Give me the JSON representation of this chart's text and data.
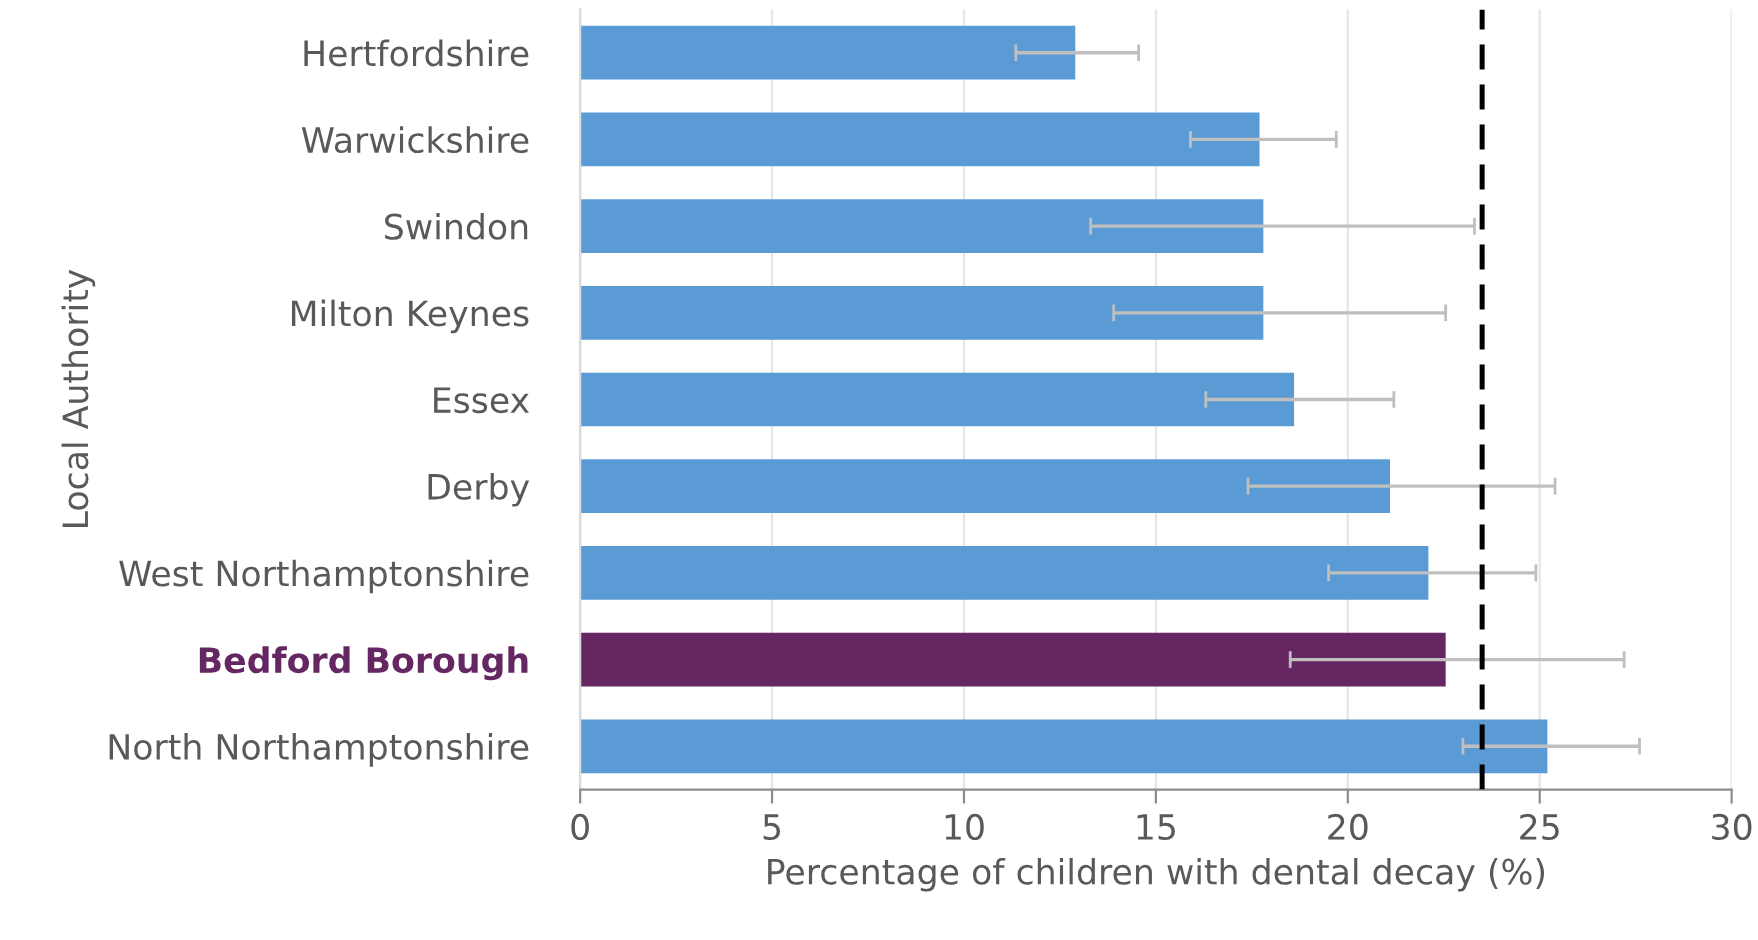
{
  "chart_data": {
    "type": "bar",
    "orientation": "horizontal",
    "xlabel": "Percentage of children with dental decay (%)",
    "ylabel": "Local Authority",
    "categories": [
      "Hertfordshire",
      "Warwickshire",
      "Swindon",
      "Milton Keynes",
      "Essex",
      "Derby",
      "West Northamptonshire",
      "Bedford Borough",
      "North Northamptonshire"
    ],
    "values": [
      12.9,
      17.7,
      17.8,
      17.8,
      18.6,
      21.1,
      22.1,
      22.55,
      25.2
    ],
    "colors": [
      "#5b9bd5",
      "#5b9bd5",
      "#5b9bd5",
      "#5b9bd5",
      "#5b9bd5",
      "#5b9bd5",
      "#5b9bd5",
      "#652762",
      "#5b9bd5"
    ],
    "errors": [
      [
        11.35,
        14.55
      ],
      [
        15.9,
        19.7
      ],
      [
        13.3,
        23.3
      ],
      [
        13.9,
        22.55
      ],
      [
        16.3,
        21.2
      ],
      [
        17.4,
        25.4
      ],
      [
        19.5,
        24.9
      ],
      [
        18.5,
        27.2
      ],
      [
        23.0,
        27.6
      ]
    ],
    "xlim": [
      0,
      30
    ],
    "xticks": [
      0,
      5,
      10,
      15,
      20,
      25,
      30
    ],
    "grid": "x",
    "ref_lines": [
      {
        "axis": "x",
        "value": 23.5,
        "color": "#000000",
        "line_style": "dashed"
      }
    ]
  }
}
